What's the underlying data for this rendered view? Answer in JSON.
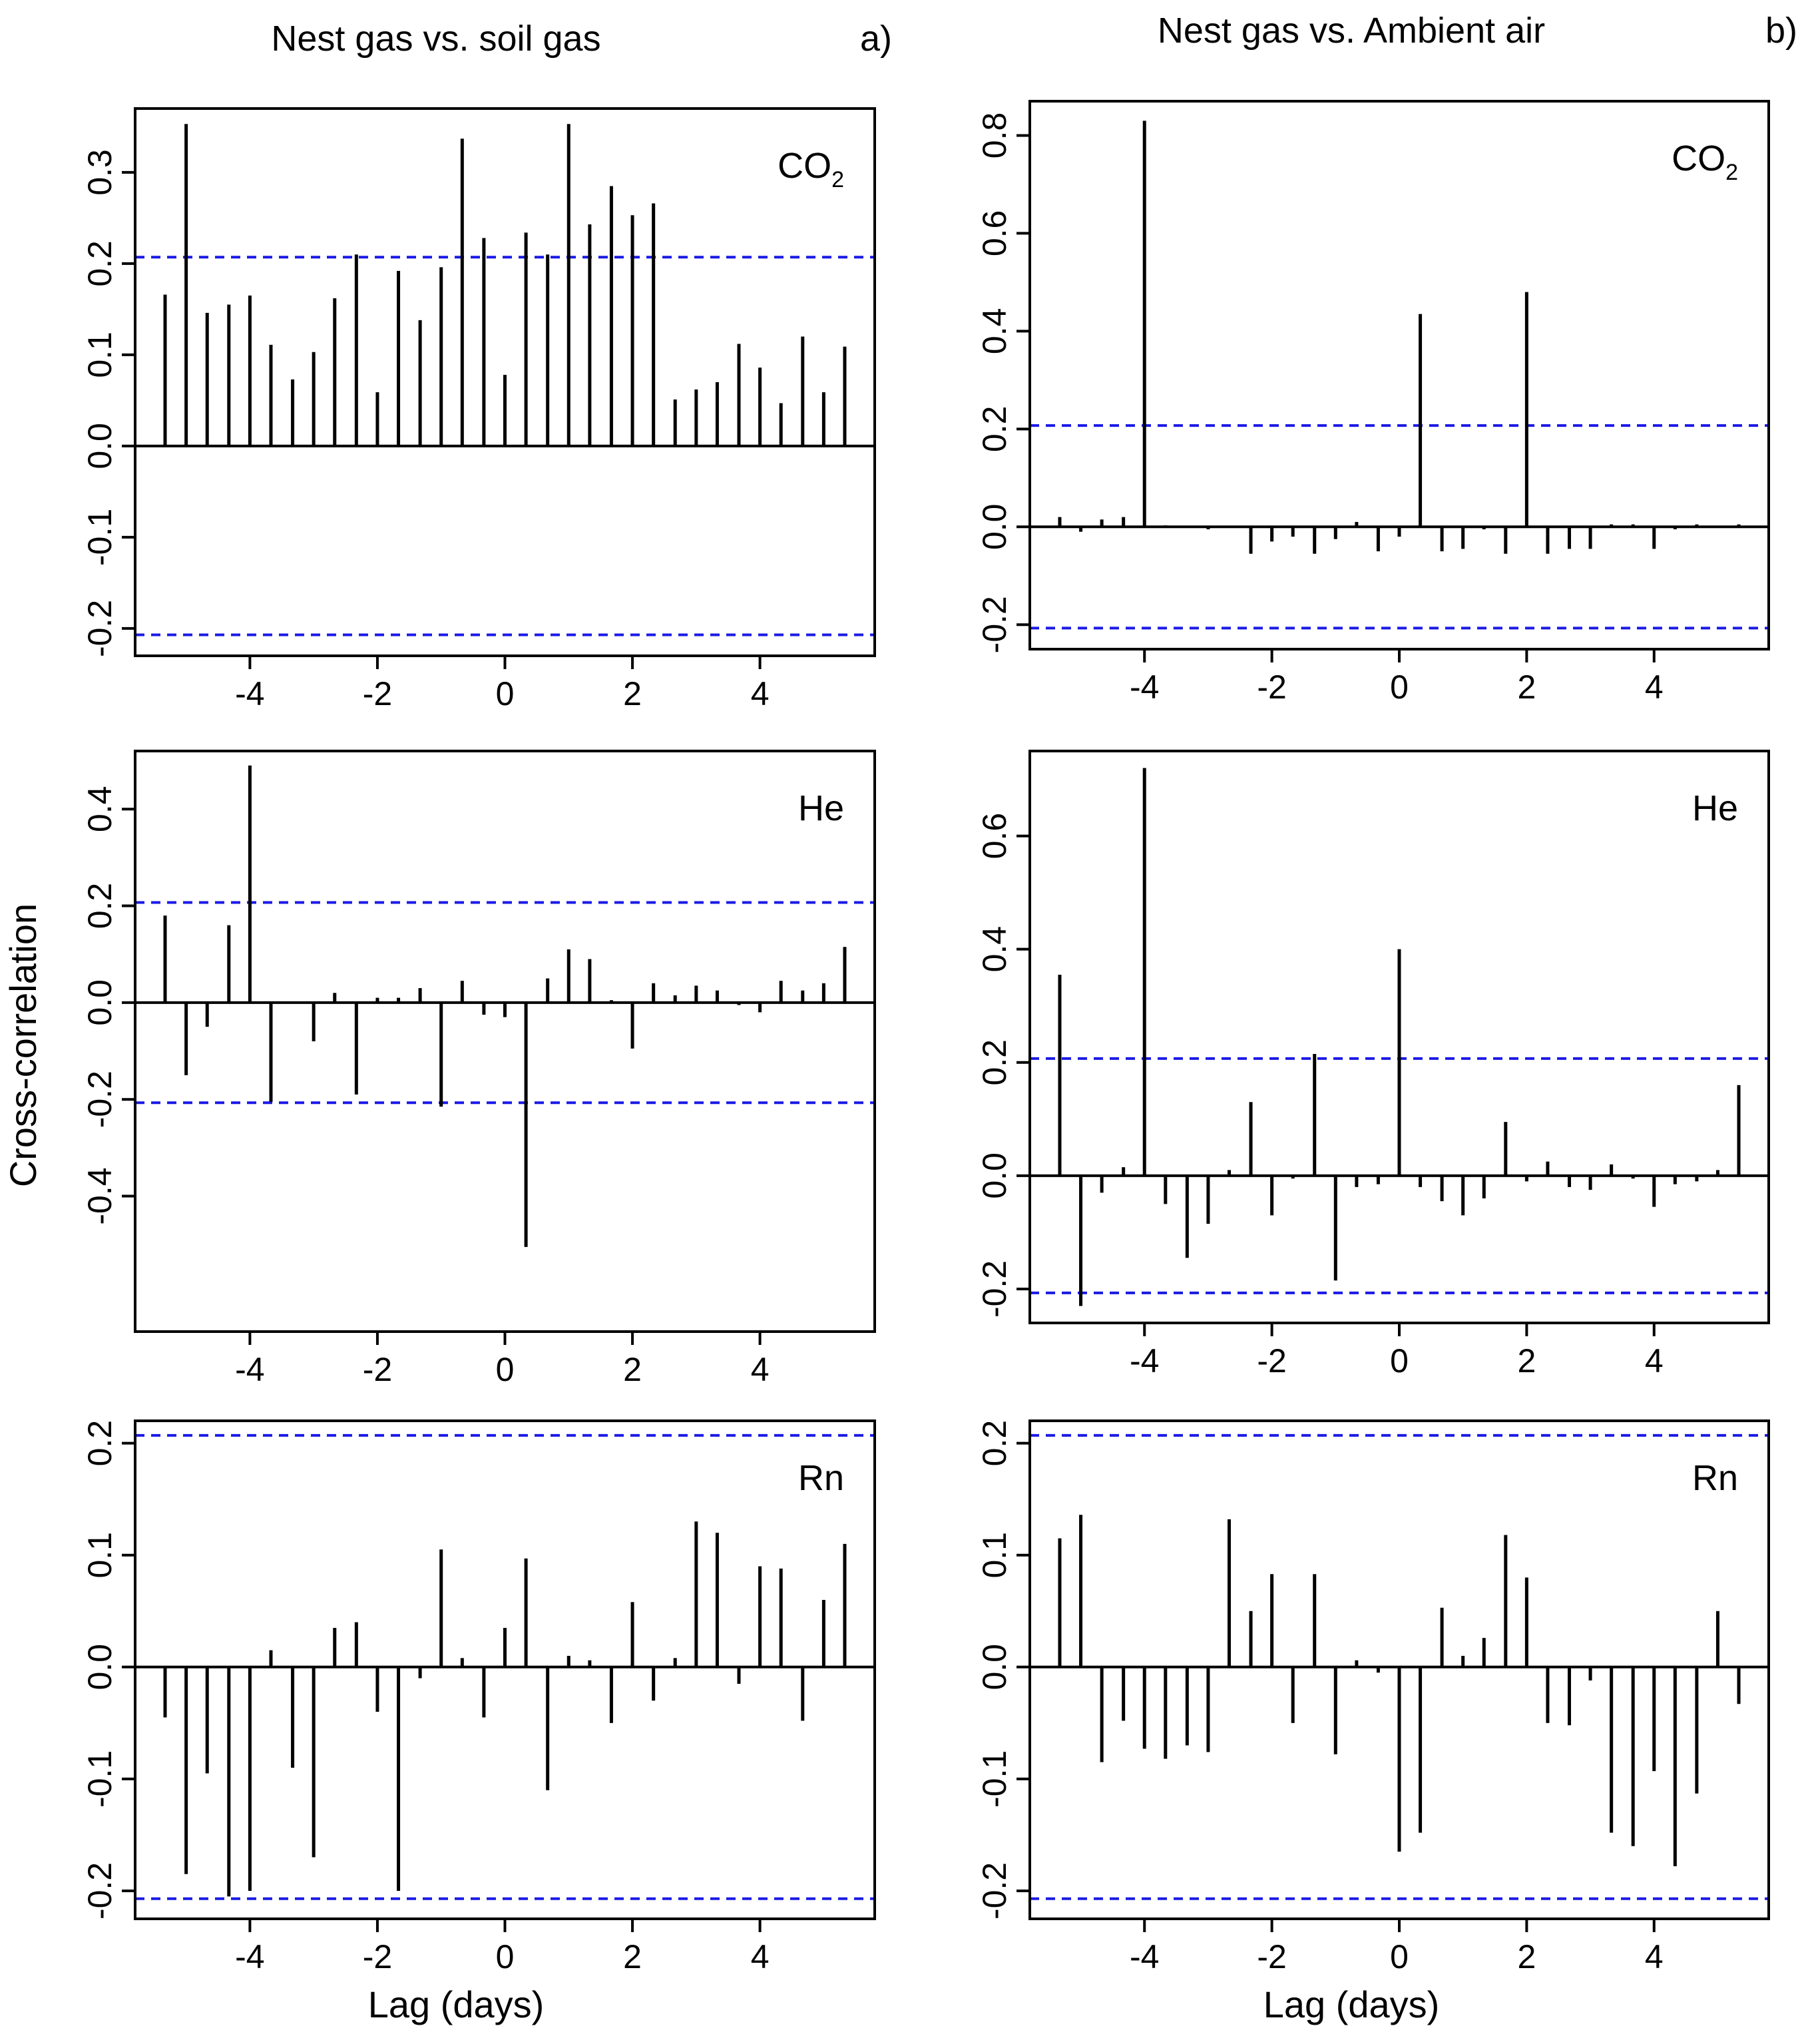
{
  "figure": {
    "column_titles": [
      "Nest gas vs. soil gas",
      "Nest gas vs. Ambient air"
    ],
    "panel_tags": [
      "a)",
      "b)"
    ],
    "ylabel": "Cross-correlation",
    "xlabel": "Lag (days)",
    "colors": {
      "spike": "#000000",
      "confidence": "#1a1ae6",
      "frame": "#000000"
    }
  },
  "chart_data": [
    {
      "id": "soil-co2",
      "type": "bar",
      "column": 0,
      "row": 0,
      "label_text": "CO",
      "label_sub": "2",
      "xlim": [
        -5.8,
        5.8
      ],
      "ylim": [
        -0.23,
        0.37
      ],
      "xticks": [
        -4,
        -2,
        0,
        2,
        4
      ],
      "xtick_labels": [
        "-4",
        "-2",
        "0",
        "2",
        "4"
      ],
      "yticks": [
        -0.2,
        -0.1,
        0.0,
        0.1,
        0.2,
        0.3
      ],
      "ytick_labels": [
        "-0.2",
        "-0.1",
        "0.0",
        "0.1",
        "0.2",
        "0.3"
      ],
      "ci": 0.207,
      "show_xlabel": false,
      "x": [
        -5.33,
        -5,
        -4.67,
        -4.33,
        -4,
        -3.67,
        -3.33,
        -3,
        -2.67,
        -2.33,
        -2,
        -1.67,
        -1.33,
        -1,
        -0.67,
        -0.33,
        0,
        0.33,
        0.67,
        1,
        1.33,
        1.67,
        2,
        2.33,
        2.67,
        3,
        3.33,
        3.67,
        4,
        4.33,
        4.67,
        5,
        5.33
      ],
      "values": [
        0.166,
        0.353,
        0.146,
        0.155,
        0.165,
        0.111,
        0.073,
        0.103,
        0.162,
        0.21,
        0.059,
        0.192,
        0.138,
        0.196,
        0.337,
        0.228,
        0.078,
        0.234,
        0.21,
        0.353,
        0.243,
        0.285,
        0.253,
        0.266,
        0.051,
        0.062,
        0.07,
        0.112,
        0.086,
        0.047,
        0.12,
        0.059,
        0.109
      ]
    },
    {
      "id": "ambient-co2",
      "type": "bar",
      "column": 1,
      "row": 0,
      "label_text": "CO",
      "label_sub": "2",
      "xlim": [
        -5.8,
        5.8
      ],
      "ylim": [
        -0.25,
        0.87
      ],
      "xticks": [
        -4,
        -2,
        0,
        2,
        4
      ],
      "xtick_labels": [
        "-4",
        "-2",
        "0",
        "2",
        "4"
      ],
      "yticks": [
        -0.2,
        0.0,
        0.2,
        0.4,
        0.6,
        0.8
      ],
      "ytick_labels": [
        "-0.2",
        "0.0",
        "0.2",
        "0.4",
        "0.6",
        "0.8"
      ],
      "ci": 0.207,
      "show_xlabel": false,
      "x": [
        -5.33,
        -5,
        -4.67,
        -4.33,
        -4,
        -3.67,
        -3.33,
        -3,
        -2.67,
        -2.33,
        -2,
        -1.67,
        -1.33,
        -1,
        -0.67,
        -0.33,
        0,
        0.33,
        0.67,
        1,
        1.33,
        1.67,
        2,
        2.33,
        2.67,
        3,
        3.33,
        3.67,
        4,
        4.33,
        4.67,
        5,
        5.33
      ],
      "values": [
        0.02,
        -0.01,
        0.015,
        0.02,
        0.83,
        0.003,
        0.002,
        -0.005,
        0.002,
        -0.055,
        -0.03,
        -0.02,
        -0.055,
        -0.025,
        0.01,
        -0.05,
        -0.02,
        0.435,
        -0.05,
        -0.045,
        -0.005,
        -0.055,
        0.48,
        -0.055,
        -0.045,
        -0.045,
        0.005,
        0.005,
        -0.045,
        -0.005,
        0.005,
        0.002,
        0.005
      ]
    },
    {
      "id": "soil-he",
      "type": "bar",
      "column": 0,
      "row": 1,
      "label_text": "He",
      "label_sub": "",
      "xlim": [
        -5.8,
        5.8
      ],
      "ylim": [
        -0.68,
        0.52
      ],
      "xticks": [
        -4,
        -2,
        0,
        2,
        4
      ],
      "xtick_labels": [
        "-4",
        "-2",
        "0",
        "2",
        "4"
      ],
      "yticks": [
        -0.4,
        -0.2,
        0.0,
        0.2,
        0.4
      ],
      "ytick_labels": [
        "-0.4",
        "-0.2",
        "0.0",
        "0.2",
        "0.4"
      ],
      "ci": 0.207,
      "show_xlabel": false,
      "x": [
        -5.33,
        -5,
        -4.67,
        -4.33,
        -4,
        -3.67,
        -3.33,
        -3,
        -2.67,
        -2.33,
        -2,
        -1.67,
        -1.33,
        -1,
        -0.67,
        -0.33,
        0,
        0.33,
        0.67,
        1,
        1.33,
        1.67,
        2,
        2.33,
        2.67,
        3,
        3.33,
        3.67,
        4,
        4.33,
        4.67,
        5,
        5.33
      ],
      "values": [
        0.18,
        -0.15,
        -0.05,
        0.16,
        0.49,
        -0.205,
        0.0,
        -0.08,
        0.02,
        -0.19,
        0.01,
        0.01,
        0.03,
        -0.215,
        0.045,
        -0.025,
        -0.03,
        -0.505,
        0.05,
        0.11,
        0.09,
        0.005,
        -0.095,
        0.04,
        0.015,
        0.035,
        0.025,
        -0.005,
        -0.02,
        0.045,
        0.025,
        0.04,
        0.115
      ]
    },
    {
      "id": "ambient-he",
      "type": "bar",
      "column": 1,
      "row": 1,
      "label_text": "He",
      "label_sub": "",
      "xlim": [
        -5.8,
        5.8
      ],
      "ylim": [
        -0.26,
        0.75
      ],
      "xticks": [
        -4,
        -2,
        0,
        2,
        4
      ],
      "xtick_labels": [
        "-4",
        "-2",
        "0",
        "2",
        "4"
      ],
      "yticks": [
        -0.2,
        0.0,
        0.2,
        0.4,
        0.6
      ],
      "ytick_labels": [
        "-0.2",
        "0.0",
        "0.2",
        "0.4",
        "0.6"
      ],
      "ci": 0.207,
      "show_xlabel": false,
      "x": [
        -5.33,
        -5,
        -4.67,
        -4.33,
        -4,
        -3.67,
        -3.33,
        -3,
        -2.67,
        -2.33,
        -2,
        -1.67,
        -1.33,
        -1,
        -0.67,
        -0.33,
        0,
        0.33,
        0.67,
        1,
        1.33,
        1.67,
        2,
        2.33,
        2.67,
        3,
        3.33,
        3.67,
        4,
        4.33,
        4.67,
        5,
        5.33
      ],
      "values": [
        0.355,
        -0.23,
        -0.03,
        0.015,
        0.72,
        -0.05,
        -0.145,
        -0.085,
        0.01,
        0.13,
        -0.07,
        -0.005,
        0.215,
        -0.185,
        -0.02,
        -0.015,
        0.4,
        -0.02,
        -0.045,
        -0.07,
        -0.04,
        0.095,
        -0.01,
        0.025,
        -0.02,
        -0.025,
        0.02,
        -0.005,
        -0.055,
        -0.015,
        -0.01,
        0.01,
        0.16
      ]
    },
    {
      "id": "soil-rn",
      "type": "bar",
      "column": 0,
      "row": 2,
      "label_text": "Rn",
      "label_sub": "",
      "xlim": [
        -5.8,
        5.8
      ],
      "ylim": [
        -0.225,
        0.22
      ],
      "xticks": [
        -4,
        -2,
        0,
        2,
        4
      ],
      "xtick_labels": [
        "-4",
        "-2",
        "0",
        "2",
        "4"
      ],
      "yticks": [
        -0.2,
        -0.1,
        0.0,
        0.1,
        0.2
      ],
      "ytick_labels": [
        "-0.2",
        "-0.1",
        "0.0",
        "0.1",
        "0.2"
      ],
      "ci": 0.207,
      "show_xlabel": true,
      "x": [
        -5.33,
        -5,
        -4.67,
        -4.33,
        -4,
        -3.67,
        -3.33,
        -3,
        -2.67,
        -2.33,
        -2,
        -1.67,
        -1.33,
        -1,
        -0.67,
        -0.33,
        0,
        0.33,
        0.67,
        1,
        1.33,
        1.67,
        2,
        2.33,
        2.67,
        3,
        3.33,
        3.67,
        4,
        4.33,
        4.67,
        5,
        5.33
      ],
      "values": [
        -0.045,
        -0.185,
        -0.095,
        -0.205,
        -0.2,
        0.015,
        -0.09,
        -0.17,
        0.035,
        0.04,
        -0.04,
        -0.2,
        -0.01,
        0.105,
        0.008,
        -0.045,
        0.035,
        0.097,
        -0.11,
        0.01,
        0.006,
        -0.05,
        0.058,
        -0.03,
        0.008,
        0.13,
        0.12,
        -0.015,
        0.09,
        0.088,
        -0.048,
        0.06,
        0.11
      ]
    },
    {
      "id": "ambient-rn",
      "type": "bar",
      "column": 1,
      "row": 2,
      "label_text": "Rn",
      "label_sub": "",
      "xlim": [
        -5.8,
        5.8
      ],
      "ylim": [
        -0.225,
        0.22
      ],
      "xticks": [
        -4,
        -2,
        0,
        2,
        4
      ],
      "xtick_labels": [
        "-4",
        "-2",
        "0",
        "2",
        "4"
      ],
      "yticks": [
        -0.2,
        -0.1,
        0.0,
        0.1,
        0.2
      ],
      "ytick_labels": [
        "-0.2",
        "-0.1",
        "0.0",
        "0.1",
        "0.2"
      ],
      "ci": 0.207,
      "show_xlabel": true,
      "x": [
        -5.33,
        -5,
        -4.67,
        -4.33,
        -4,
        -3.67,
        -3.33,
        -3,
        -2.67,
        -2.33,
        -2,
        -1.67,
        -1.33,
        -1,
        -0.67,
        -0.33,
        0,
        0.33,
        0.67,
        1,
        1.33,
        1.67,
        2,
        2.33,
        2.67,
        3,
        3.33,
        3.67,
        4,
        4.33,
        4.67,
        5,
        5.33
      ],
      "values": [
        0.115,
        0.136,
        -0.085,
        -0.048,
        -0.073,
        -0.082,
        -0.07,
        -0.076,
        0.132,
        0.05,
        0.083,
        -0.05,
        0.083,
        -0.078,
        0.006,
        -0.005,
        -0.165,
        -0.148,
        0.053,
        0.01,
        0.026,
        0.118,
        0.08,
        -0.05,
        -0.052,
        -0.012,
        -0.148,
        -0.16,
        -0.093,
        -0.178,
        -0.113,
        0.05,
        -0.033
      ]
    }
  ]
}
